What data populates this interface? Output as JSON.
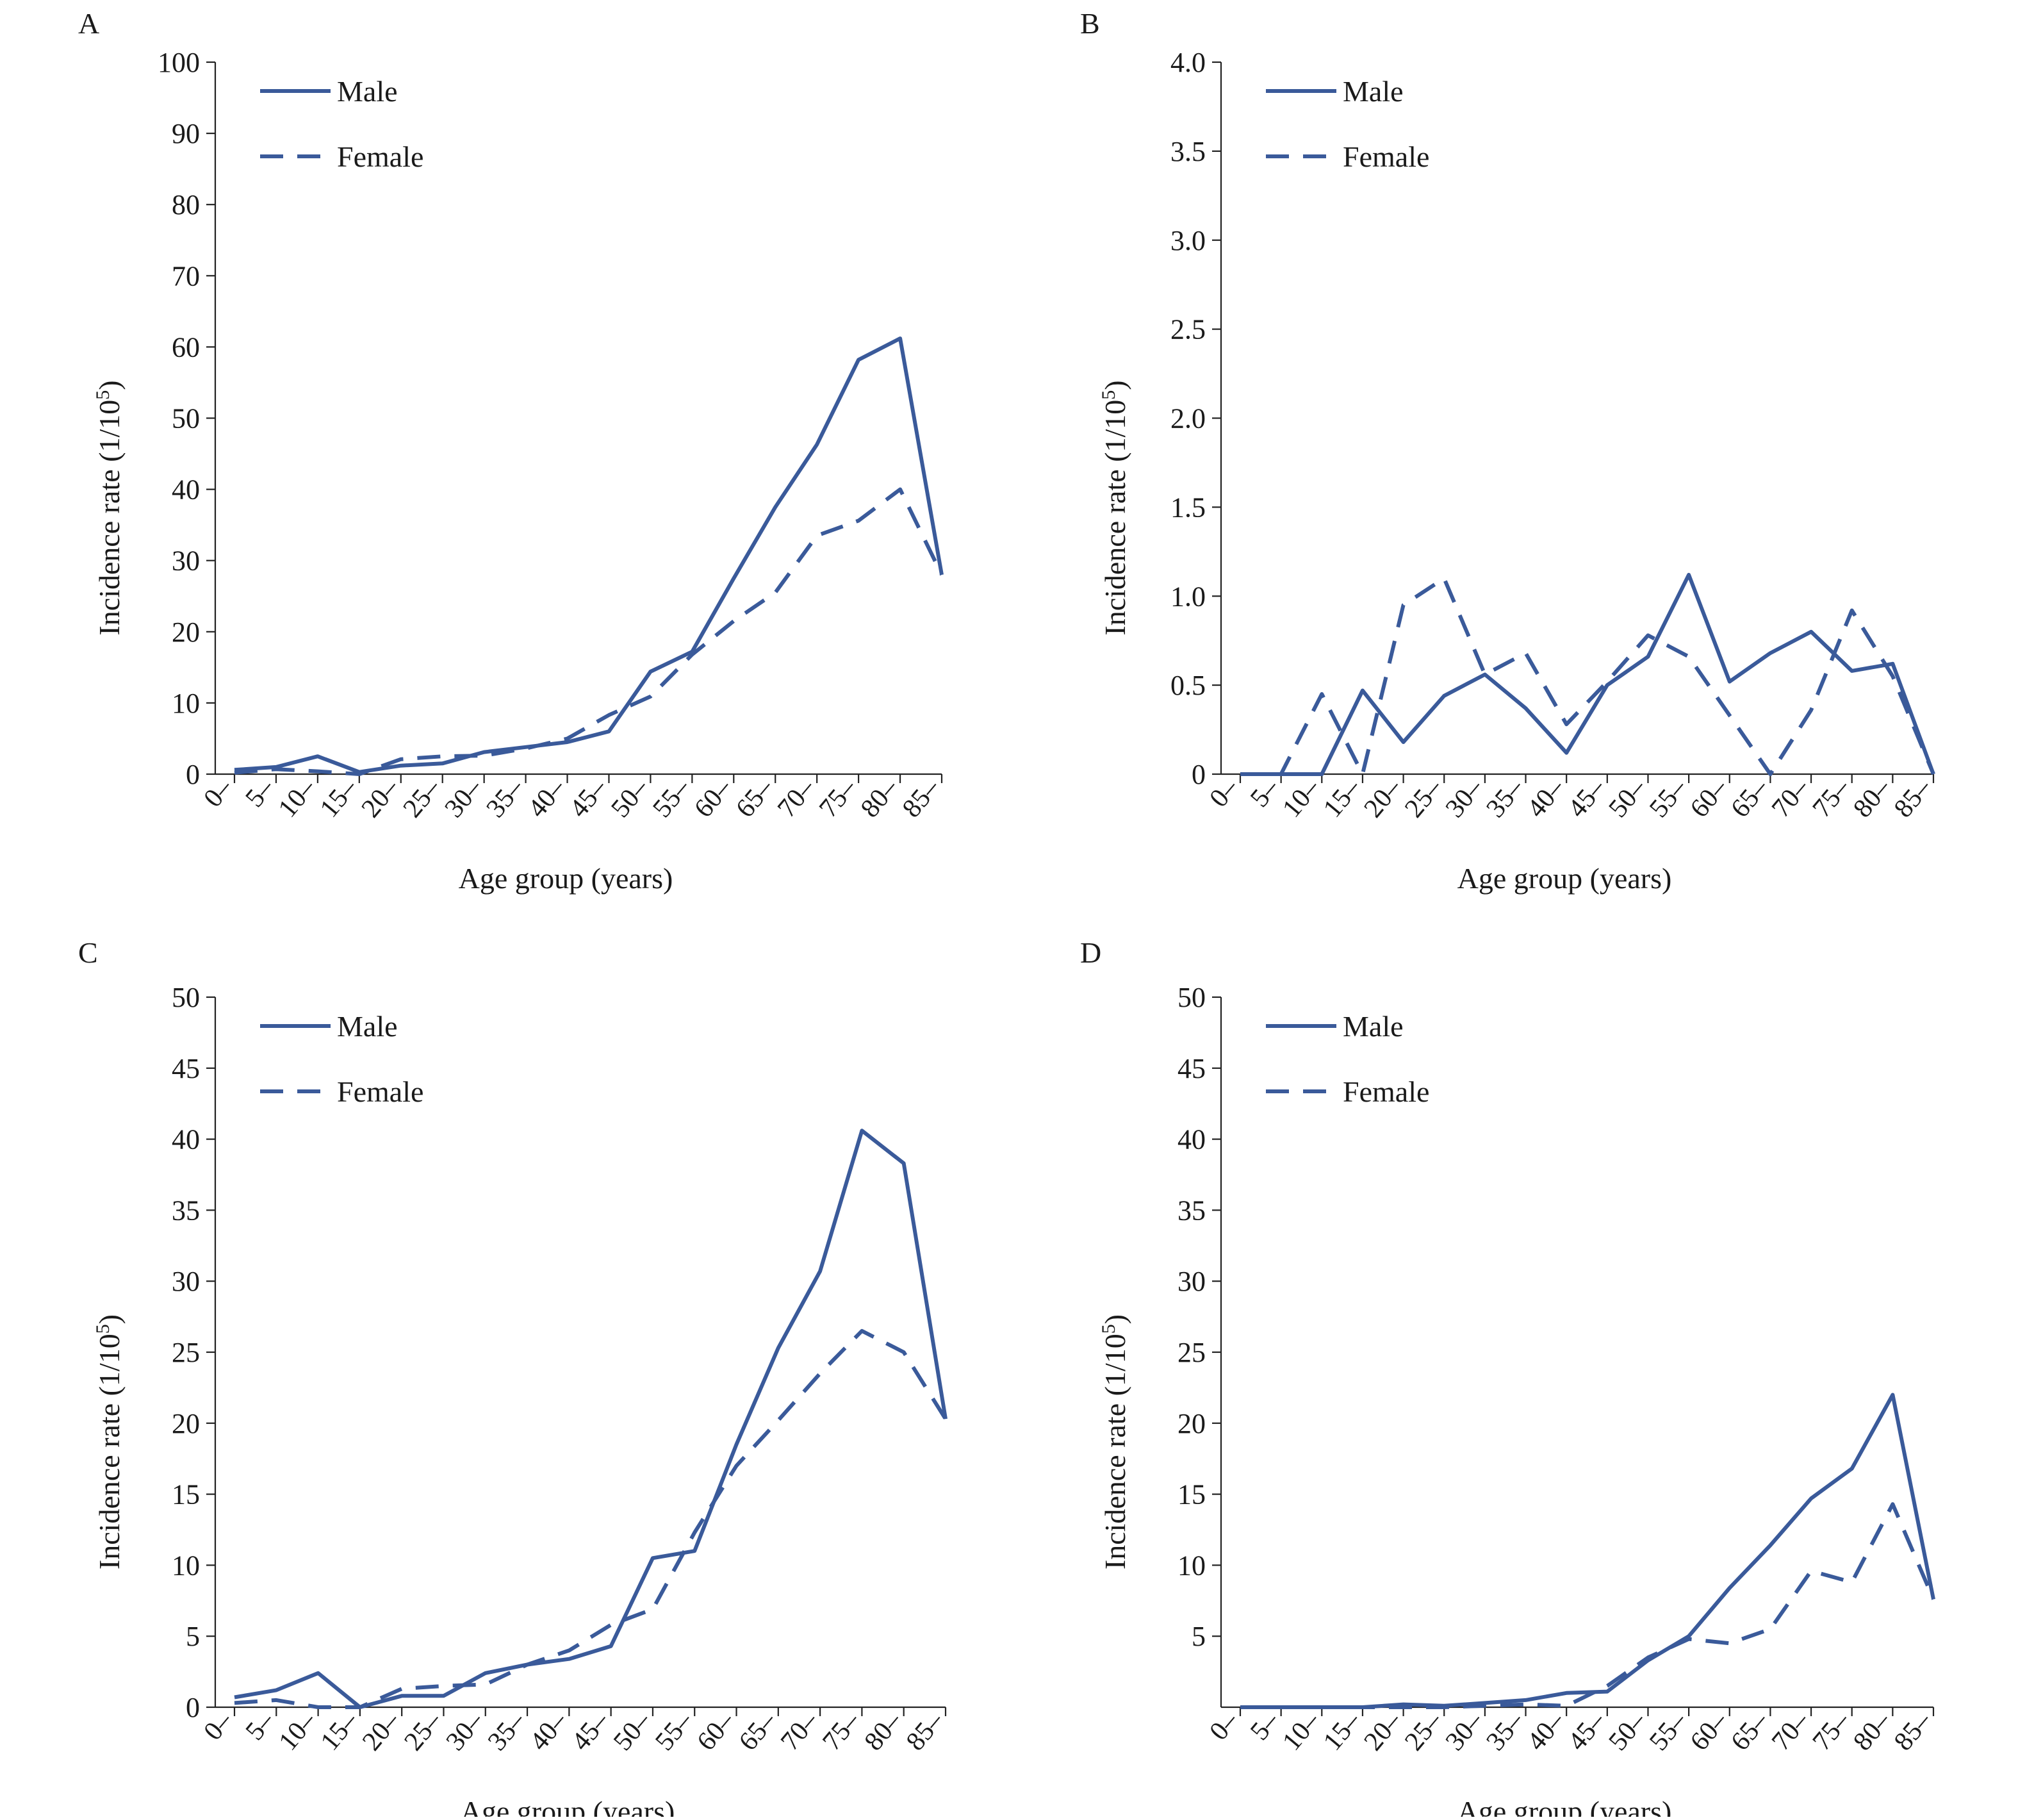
{
  "chart_data": [
    {
      "panel_letter": "A",
      "type": "line",
      "xlabel": "Age group (years)",
      "ylabel": "Incidence rate (1/10",
      "ylabel_sup": "5",
      "ylabel_close": ")",
      "categories": [
        "0–",
        "5–",
        "10–",
        "15–",
        "20–",
        "25–",
        "30–",
        "35–",
        "40–",
        "45–",
        "50–",
        "55–",
        "60–",
        "65–",
        "70–",
        "75–",
        "80–",
        "85–"
      ],
      "ylim": [
        0,
        100
      ],
      "yticks": [
        0,
        10,
        20,
        30,
        40,
        50,
        60,
        70,
        80,
        90,
        100
      ],
      "ytick_labels": [
        "0",
        "10",
        "20",
        "30",
        "40",
        "50",
        "60",
        "70",
        "80",
        "90",
        "100"
      ],
      "legend_position": "top-left",
      "series": [
        {
          "name": "Male",
          "style": "solid",
          "values": [
            0.6,
            1.0,
            2.5,
            0.3,
            1.2,
            1.5,
            3.1,
            3.8,
            4.5,
            6.0,
            14.4,
            17.2,
            27.5,
            37.5,
            46.3,
            58.2,
            61.2,
            28.0
          ]
        },
        {
          "name": "Female",
          "style": "dashed",
          "values": [
            0.2,
            0.7,
            0.4,
            0.0,
            2.1,
            2.5,
            2.6,
            3.6,
            5.0,
            8.3,
            10.9,
            16.8,
            21.5,
            25.5,
            33.5,
            35.6,
            40.0,
            28.0
          ]
        }
      ]
    },
    {
      "panel_letter": "B",
      "type": "line",
      "xlabel": "Age group (years)",
      "ylabel": "Incidence rate (1/10",
      "ylabel_sup": "5",
      "ylabel_close": ")",
      "categories": [
        "0–",
        "5–",
        "10–",
        "15–",
        "20–",
        "25–",
        "30–",
        "35–",
        "40–",
        "45–",
        "50–",
        "55–",
        "60–",
        "65–",
        "70–",
        "75–",
        "80–",
        "85–"
      ],
      "ylim": [
        0,
        4
      ],
      "yticks": [
        0,
        0.5,
        1.0,
        1.5,
        2.0,
        2.5,
        3.0,
        3.5,
        4.0
      ],
      "ytick_labels": [
        "0",
        "0.5",
        "1.0",
        "1.5",
        "2.0",
        "2.5",
        "3.0",
        "3.5",
        "4.0"
      ],
      "legend_position": "top-left",
      "series": [
        {
          "name": "Male",
          "style": "solid",
          "values": [
            0,
            0,
            0,
            0.47,
            0.18,
            0.44,
            0.56,
            0.37,
            0.12,
            0.5,
            0.66,
            1.12,
            0.52,
            0.68,
            0.8,
            0.58,
            0.62,
            0.0
          ]
        },
        {
          "name": "Female",
          "style": "dashed",
          "values": [
            0,
            0,
            0.45,
            0.0,
            0.95,
            1.1,
            0.56,
            0.68,
            0.28,
            0.52,
            0.78,
            0.66,
            0.33,
            0.0,
            0.36,
            0.92,
            0.55,
            0.0
          ]
        }
      ]
    },
    {
      "panel_letter": "C",
      "type": "line",
      "xlabel": "Age group (years)",
      "ylabel": "Incidence rate (1/10",
      "ylabel_sup": "5",
      "ylabel_close": ")",
      "categories": [
        "0–",
        "5–",
        "10–",
        "15–",
        "20–",
        "25–",
        "30–",
        "35–",
        "40–",
        "45–",
        "50–",
        "55–",
        "60–",
        "65–",
        "70–",
        "75–",
        "80–",
        "85–"
      ],
      "ylim": [
        0,
        50
      ],
      "yticks": [
        0,
        5,
        10,
        15,
        20,
        25,
        30,
        35,
        40,
        45,
        50
      ],
      "ytick_labels": [
        "0",
        "5",
        "10",
        "15",
        "20",
        "25",
        "30",
        "35",
        "40",
        "45",
        "50"
      ],
      "legend_position": "top-left",
      "series": [
        {
          "name": "Male",
          "style": "solid",
          "values": [
            0.7,
            1.2,
            2.4,
            0.0,
            0.8,
            0.8,
            2.4,
            3.0,
            3.4,
            4.3,
            10.5,
            11.0,
            18.5,
            25.3,
            30.7,
            40.6,
            38.3,
            20.3
          ]
        },
        {
          "name": "Female",
          "style": "dashed",
          "values": [
            0.3,
            0.5,
            0.0,
            0.0,
            1.3,
            1.5,
            1.6,
            3.0,
            4.0,
            5.8,
            6.9,
            12.3,
            17.0,
            20.2,
            23.5,
            26.5,
            25.0,
            20.3
          ]
        }
      ]
    },
    {
      "panel_letter": "D",
      "type": "line",
      "xlabel": "Age group (years)",
      "ylabel": "Incidence rate (1/10",
      "ylabel_sup": "5",
      "ylabel_close": ")",
      "categories": [
        "0–",
        "5–",
        "10–",
        "15–",
        "20–",
        "25–",
        "30–",
        "35–",
        "40–",
        "45–",
        "50–",
        "55–",
        "60–",
        "65–",
        "70–",
        "75–",
        "80–",
        "85–"
      ],
      "ylim": [
        0,
        50
      ],
      "yticks": [
        5,
        10,
        15,
        20,
        25,
        30,
        35,
        40,
        45,
        50
      ],
      "ytick_labels": [
        "5",
        "10",
        "15",
        "20",
        "25",
        "30",
        "35",
        "40",
        "45",
        "50"
      ],
      "legend_position": "top-left",
      "series": [
        {
          "name": "Male",
          "style": "solid",
          "values": [
            0.0,
            0.0,
            0.0,
            0.0,
            0.2,
            0.1,
            0.3,
            0.5,
            1.0,
            1.1,
            3.3,
            5.0,
            8.4,
            11.4,
            14.7,
            16.8,
            22.0,
            7.6
          ]
        },
        {
          "name": "Female",
          "style": "dashed",
          "values": [
            0.0,
            0.0,
            0.0,
            0.0,
            0.0,
            0.0,
            0.1,
            0.2,
            0.1,
            1.5,
            3.5,
            4.8,
            4.5,
            5.5,
            9.6,
            8.8,
            14.3,
            7.6
          ]
        }
      ]
    }
  ],
  "colors": {
    "line": "#3a5a9a",
    "axis": "#222222",
    "text": "#1a1a1a"
  }
}
